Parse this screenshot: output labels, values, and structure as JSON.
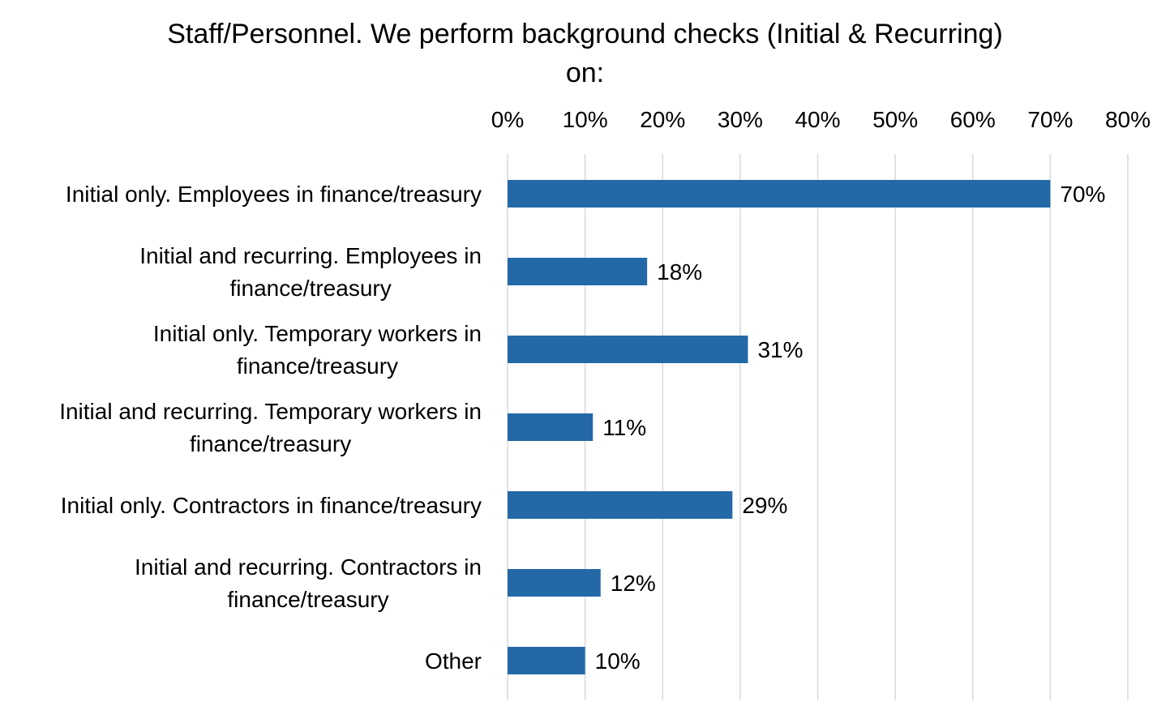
{
  "chart_data": {
    "type": "bar",
    "orientation": "horizontal",
    "title_lines": [
      "Staff/Personnel. We perform background checks (Initial & Recurring)",
      "on:"
    ],
    "title": "Staff/Personnel. We perform background checks (Initial & Recurring) on:",
    "xlabel": "",
    "ylabel": "",
    "xlim": [
      0,
      80
    ],
    "x_ticks": [
      0,
      10,
      20,
      30,
      40,
      50,
      60,
      70,
      80
    ],
    "x_tick_labels": [
      "0%",
      "10%",
      "20%",
      "30%",
      "40%",
      "50%",
      "60%",
      "70%",
      "80%"
    ],
    "x_axis_position": "top",
    "grid": true,
    "legend": "none",
    "bar_color": "#2369a8",
    "categories": [
      [
        "Initial only. Employees in finance/treasury"
      ],
      [
        "Initial and recurring. Employees in",
        "finance/treasury"
      ],
      [
        "Initial only. Temporary workers in",
        "finance/treasury"
      ],
      [
        "Initial and recurring. Temporary workers in",
        "finance/treasury"
      ],
      [
        "Initial only. Contractors in finance/treasury"
      ],
      [
        "Initial and recurring. Contractors in",
        "finance/treasury"
      ],
      [
        "Other"
      ]
    ],
    "values": [
      70,
      18,
      31,
      11,
      29,
      12,
      10
    ],
    "data_labels": [
      "70%",
      "18%",
      "31%",
      "11%",
      "29%",
      "12%",
      "10%"
    ]
  }
}
